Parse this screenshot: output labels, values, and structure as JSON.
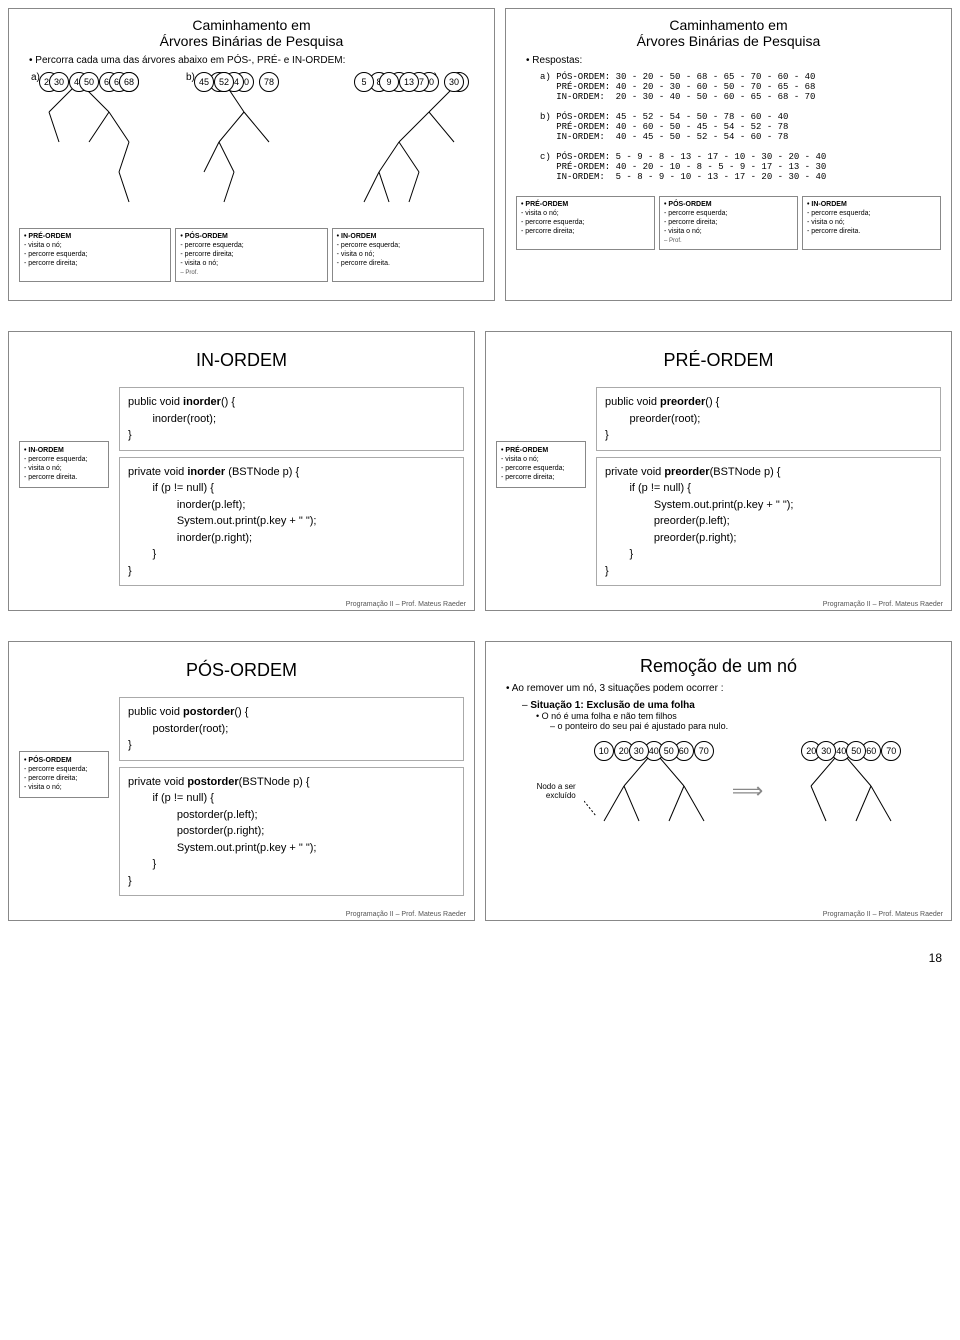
{
  "page_number": "18",
  "footer_text": "Programação II – Prof. Mateus Raeder",
  "prof_label": "– Prof.",
  "slide1": {
    "title": "Caminhamento em\nÁrvores Binárias de Pesquisa",
    "bullet": "Percorra cada uma das árvores abaixo em PÓS-, PRÉ- e IN-ORDEM:",
    "labels": {
      "a": "a)",
      "b": "b)",
      "c": "c)"
    },
    "tree_a": [
      "40",
      "20",
      "60",
      "30",
      "50",
      "70",
      "65",
      "68"
    ],
    "tree_b": [
      "40",
      "60",
      "50",
      "78",
      "45",
      "54",
      "52"
    ],
    "tree_c": [
      "40",
      "20",
      "10",
      "30",
      "8",
      "17",
      "5",
      "9",
      "13"
    ]
  },
  "slide2": {
    "title": "Caminhamento em\nÁrvores Binárias de Pesquisa",
    "bullet": "Respostas:",
    "answers": "a) PÓS-ORDEM: 30 - 20 - 50 - 68 - 65 - 70 - 60 - 40\n   PRÉ-ORDEM: 40 - 20 - 30 - 60 - 50 - 70 - 65 - 68\n   IN-ORDEM:  20 - 30 - 40 - 50 - 60 - 65 - 68 - 70\n\nb) PÓS-ORDEM: 45 - 52 - 54 - 50 - 78 - 60 - 40\n   PRÉ-ORDEM: 40 - 60 - 50 - 45 - 54 - 52 - 78\n   IN-ORDEM:  40 - 45 - 50 - 52 - 54 - 60 - 78\n\nc) PÓS-ORDEM: 5 - 9 - 8 - 13 - 17 - 10 - 30 - 20 - 40\n   PRÉ-ORDEM: 40 - 20 - 10 - 8 - 5 - 9 - 17 - 13 - 30\n   IN-ORDEM:  5 - 8 - 9 - 10 - 13 - 17 - 20 - 30 - 40"
  },
  "legends": {
    "pre": {
      "title": "• PRÉ-ORDEM",
      "l1": "- visita o nó;",
      "l2": "- percorre esquerda;",
      "l3": "- percorre direita;"
    },
    "pos": {
      "title": "• PÓS-ORDEM",
      "l1": "- percorre esquerda;",
      "l2": "- percorre direita;",
      "l3": "- visita o nó;"
    },
    "in": {
      "title": "• IN-ORDEM",
      "l1": "- percorre esquerda;",
      "l2": "- visita o nó;",
      "l3": "- percorre direita."
    }
  },
  "slide3": {
    "title": "IN-ORDEM",
    "code1": "public void <b>inorder</b>() {\n        inorder(root);\n}",
    "code2": "private void <b>inorder</b> (BSTNode p) {\n        if (p != null) {\n                inorder(p.left);\n                System.out.print(p.key + \" \");\n                inorder(p.right);\n        }\n}"
  },
  "slide4": {
    "title": "PRÉ-ORDEM",
    "code1": "public void <b>preorder</b>() {\n        preorder(root);\n}",
    "code2": "private void <b>preorder</b>(BSTNode p) {\n        if (p != null) {\n                System.out.print(p.key + \" \");\n                preorder(p.left);\n                preorder(p.right);\n        }\n}"
  },
  "slide5": {
    "title": "PÓS-ORDEM",
    "code1": "public void <b>postorder</b>() {\n        postorder(root);\n}",
    "code2": "private void <b>postorder</b>(BSTNode p) {\n        if (p != null) {\n                postorder(p.left);\n                postorder(p.right);\n                System.out.print(p.key + \" \");\n        }\n}"
  },
  "slide6": {
    "title": "Remoção de um nó",
    "bullet": "Ao remover um nó, 3 situações podem ocorrer :",
    "sub1": "Situação 1: Exclusão de uma folha",
    "sub2": "O nó é uma folha e não tem filhos",
    "sub3": "o ponteiro do seu pai é ajustado para nulo.",
    "nodo_label": "Nodo a ser excluído",
    "tree_before": [
      "40",
      "20",
      "60",
      "10",
      "30",
      "50",
      "70"
    ],
    "tree_after": [
      "40",
      "20",
      "60",
      "30",
      "50",
      "70"
    ]
  }
}
